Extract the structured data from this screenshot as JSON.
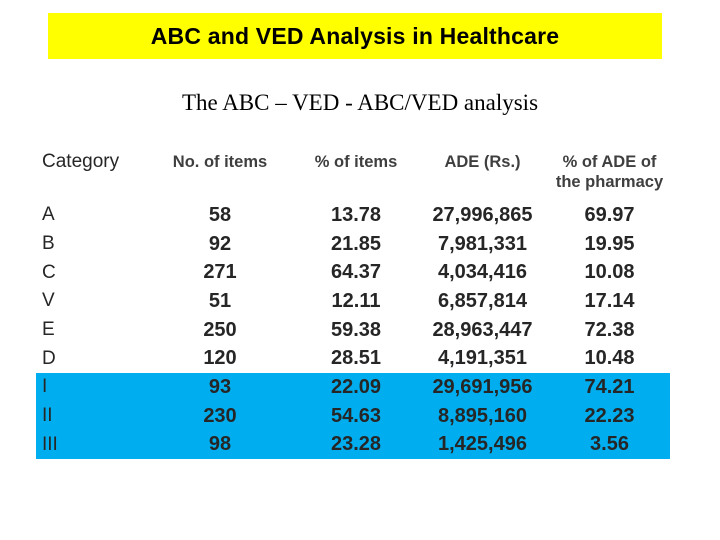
{
  "slide": {
    "title": "ABC and VED Analysis in Healthcare",
    "subtitle": "The ABC – VED - ABC/VED analysis"
  },
  "table": {
    "columns": [
      {
        "label": "Category"
      },
      {
        "label": "No. of items"
      },
      {
        "label": "% of items"
      },
      {
        "label": "ADE (Rs.)"
      },
      {
        "label": "% of ADE of the pharmacy"
      }
    ],
    "rows": [
      {
        "category": "A",
        "no_of_items": "58",
        "pct_of_items": "13.78",
        "ade_rs": "27,996,865",
        "pct_of_ade": "69.97",
        "highlighted": false
      },
      {
        "category": "B",
        "no_of_items": "92",
        "pct_of_items": "21.85",
        "ade_rs": "7,981,331",
        "pct_of_ade": "19.95",
        "highlighted": false
      },
      {
        "category": "C",
        "no_of_items": "271",
        "pct_of_items": "64.37",
        "ade_rs": "4,034,416",
        "pct_of_ade": "10.08",
        "highlighted": false
      },
      {
        "category": "V",
        "no_of_items": "51",
        "pct_of_items": "12.11",
        "ade_rs": "6,857,814",
        "pct_of_ade": "17.14",
        "highlighted": false
      },
      {
        "category": "E",
        "no_of_items": "250",
        "pct_of_items": "59.38",
        "ade_rs": "28,963,447",
        "pct_of_ade": "72.38",
        "highlighted": false
      },
      {
        "category": "D",
        "no_of_items": "120",
        "pct_of_items": "28.51",
        "ade_rs": "4,191,351",
        "pct_of_ade": "10.48",
        "highlighted": false
      },
      {
        "category": "I",
        "no_of_items": "93",
        "pct_of_items": "22.09",
        "ade_rs": "29,691,956",
        "pct_of_ade": "74.21",
        "highlighted": true
      },
      {
        "category": "II",
        "no_of_items": "230",
        "pct_of_items": "54.63",
        "ade_rs": "8,895,160",
        "pct_of_ade": "22.23",
        "highlighted": true
      },
      {
        "category": "III",
        "no_of_items": "98",
        "pct_of_items": "23.28",
        "ade_rs": "1,425,496",
        "pct_of_ade": "3.56",
        "highlighted": true
      }
    ]
  },
  "colors": {
    "title_banner_bg": "#FFFF00",
    "highlight_row_bg": "#00AEEF",
    "header_text": "#3F3F3F",
    "body_text": "#262626"
  }
}
